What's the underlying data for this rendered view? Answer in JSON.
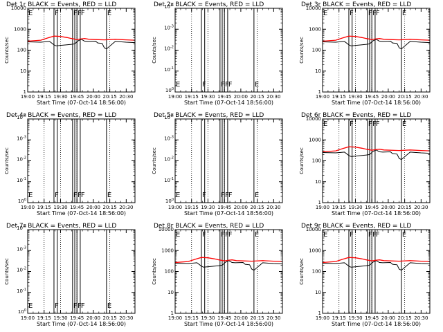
{
  "chart_data": [
    {
      "id": "det1r",
      "title": "Det 1r BLACK = Events, RED = LLD",
      "type": "line",
      "scale": "log",
      "ylim": [
        1,
        10000
      ],
      "ylabel": "Counts/sec",
      "xlabel": "Start Time (07-Oct-14 18:56:00)",
      "has_data": true
    },
    {
      "id": "det2r",
      "title": "Det 2r BLACK = Events, RED = LLD",
      "type": "line",
      "scale": "log",
      "ylim": [
        1,
        10000
      ],
      "ylabel": "Counts/sec",
      "xlabel": "Start Time (07-Oct-14 18:56:00)",
      "has_data": false
    },
    {
      "id": "det3r",
      "title": "Det 3r BLACK = Events, RED = LLD",
      "type": "line",
      "scale": "log",
      "ylim": [
        1,
        10000
      ],
      "ylabel": "Counts/sec",
      "xlabel": "Start Time (07-Oct-14 18:56:00)",
      "has_data": true
    },
    {
      "id": "det4r",
      "title": "Det 4r BLACK = Events, RED = LLD",
      "type": "line",
      "scale": "log",
      "ylim": [
        1,
        10000
      ],
      "ylabel": "Counts/sec",
      "xlabel": "Start Time (07-Oct-14 18:56:00)",
      "has_data": false
    },
    {
      "id": "det5r",
      "title": "Det 5r BLACK = Events, RED = LLD",
      "type": "line",
      "scale": "log",
      "ylim": [
        1,
        10000
      ],
      "ylabel": "Counts/sec",
      "xlabel": "Start Time (07-Oct-14 18:56:00)",
      "has_data": false
    },
    {
      "id": "det6r",
      "title": "Det 6r BLACK = Events, RED = LLD",
      "type": "line",
      "scale": "log",
      "ylim": [
        1,
        10000
      ],
      "ylabel": "Counts/sec",
      "xlabel": "Start Time (07-Oct-14 18:56:00)",
      "has_data": true
    },
    {
      "id": "det7r",
      "title": "Det 7r BLACK = Events, RED = LLD",
      "type": "line",
      "scale": "log",
      "ylim": [
        1,
        10000
      ],
      "ylabel": "Counts/sec",
      "xlabel": "Start Time (07-Oct-14 18:56:00)",
      "has_data": false
    },
    {
      "id": "det8r",
      "title": "Det 8r BLACK = Events, RED = LLD",
      "type": "line",
      "scale": "log",
      "ylim": [
        1,
        10000
      ],
      "ylabel": "Counts/sec",
      "xlabel": "Start Time (07-Oct-14 18:56:00)",
      "has_data": true
    },
    {
      "id": "det9r",
      "title": "Det 9r BLACK = Events, RED = LLD",
      "type": "line",
      "scale": "log",
      "ylim": [
        1,
        10000
      ],
      "ylabel": "Counts/sec",
      "xlabel": "Start Time (07-Oct-14 18:56:00)",
      "has_data": true
    }
  ],
  "shared": {
    "xlim": [
      "19:00",
      "20:38"
    ],
    "x_ticks": [
      "19:00",
      "19:15",
      "19:30",
      "19:45",
      "20:00",
      "20:15",
      "20:30"
    ],
    "y_ticks_data": [
      "1",
      "10",
      "100",
      "1000",
      "10000"
    ],
    "y_ticks_empty": [
      "10^0",
      "10^-1",
      "10^-2",
      "10^-3",
      "10^-4"
    ],
    "dotted_lines": [
      "19:15",
      "19:30",
      "19:45",
      "20:15"
    ],
    "solid_lines": [
      "19:24",
      "19:27",
      "19:41",
      "19:43",
      "19:45",
      "19:48",
      "20:12"
    ],
    "markers": [
      {
        "time": "19:00",
        "label": "E"
      },
      {
        "time": "19:24",
        "label": "F"
      },
      {
        "time": "19:41",
        "label": "F"
      },
      {
        "time": "19:45",
        "label": "F"
      },
      {
        "time": "19:48",
        "label": "F"
      },
      {
        "time": "20:12",
        "label": "E"
      }
    ],
    "series_events": {
      "name": "Events",
      "color": "#000000",
      "x": [
        "19:00",
        "19:12",
        "19:20",
        "19:24",
        "19:26",
        "19:40",
        "19:43",
        "19:46",
        "19:49",
        "19:52",
        "19:55",
        "20:02",
        "20:04",
        "20:08",
        "20:10",
        "20:12",
        "20:20",
        "20:30",
        "20:38"
      ],
      "y": [
        250,
        240,
        260,
        180,
        160,
        190,
        200,
        280,
        330,
        270,
        260,
        270,
        220,
        210,
        130,
        115,
        260,
        240,
        230
      ]
    },
    "series_lld": {
      "name": "LLD",
      "color": "#ff0000",
      "x": [
        "19:00",
        "19:12",
        "19:18",
        "19:24",
        "19:30",
        "19:36",
        "19:40",
        "19:45",
        "19:48",
        "19:52",
        "19:56",
        "20:02",
        "20:10",
        "20:20",
        "20:30",
        "20:38"
      ],
      "y": [
        270,
        300,
        380,
        470,
        450,
        400,
        360,
        320,
        340,
        360,
        330,
        320,
        310,
        330,
        310,
        300
      ]
    }
  }
}
